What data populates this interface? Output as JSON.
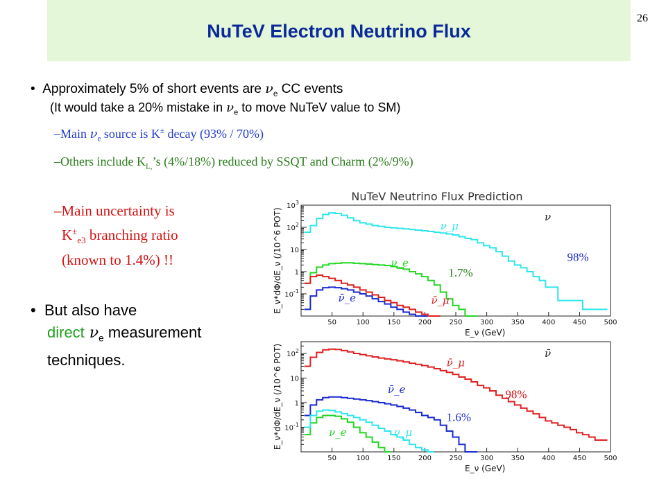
{
  "slide": {
    "title": "NuTeV Electron Neutrino Flux",
    "page_number": "26"
  },
  "text": {
    "b1_pre": "Approximately 5% of short events are ",
    "b1_nu": "ν",
    "b1_sub": "e",
    "b1_post": " CC events",
    "b1s_pre": "(It would take a 20% mistake in ",
    "b1s_nu": "ν",
    "b1s_sub": "e",
    "b1s_post": " to move NuTeV value to SM)",
    "s1_dash": "–",
    "s1_pre": "Main ",
    "s1_nu": "ν",
    "s1_sub": "e",
    "s1_mid": " source is K",
    "s1_sup": "±",
    "s1_post": "  decay (93% / 70%)",
    "s2_dash": "–",
    "s2_pre": "Others include K",
    "s2_sub": "L,",
    "s2_post": "’s (4%/18%) reduced by SSQT and Charm (2%/9%)",
    "s3_dash": "–",
    "s3_line1": "Main uncertainty is",
    "s3_K": "K",
    "s3_sup": "±",
    "s3_sub": "e3",
    "s3_line2_post": " branching ratio",
    "s3_line3": "(known to 1.4%) !!",
    "b2_line1": "But also have",
    "b2_direct": "direct",
    "b2_nu": " ν",
    "b2_sub": "e",
    "b2_post": " measurement",
    "b2_line3": "techniques."
  },
  "colors": {
    "title": "#0b2a9a",
    "title_band": "#e4f7d8",
    "sub1": "#1f3bd0",
    "sub2": "#2a7d1a",
    "sub3": "#d21212",
    "direct": "#1fa01f",
    "cyan": "#2de6ec",
    "green": "#22d622",
    "red": "#e02020",
    "blue": "#1a2ad0"
  },
  "chart_data": [
    {
      "type": "line",
      "title": "NuTeV Neutrino Flux Prediction",
      "xlabel": "E_ν (GeV)",
      "ylabel": "E_ν*dΦ/dE_ν (/10^6 POT)",
      "yscale": "log",
      "xlim": [
        0,
        500
      ],
      "ylim": [
        0.01,
        1000
      ],
      "xticks": [
        "50",
        "100",
        "150",
        "200",
        "250",
        "300",
        "350",
        "400",
        "450",
        "500"
      ],
      "yticks": [
        "10^-1",
        "1",
        "10",
        "10^2",
        "10^3"
      ],
      "corner_label": "ν",
      "annotations": [
        {
          "text": "98%",
          "x": 430,
          "y": 3,
          "color": "#1a2ad0"
        },
        {
          "text": "1.7%",
          "x": 238,
          "y": 0.6,
          "color": "#2a7d1a"
        }
      ],
      "series": [
        {
          "name": "ν_μ",
          "color": "#2de6ec",
          "label_at": [
            225,
            80
          ],
          "x": [
            10,
            20,
            30,
            40,
            50,
            60,
            70,
            80,
            90,
            100,
            110,
            120,
            130,
            140,
            150,
            160,
            170,
            180,
            190,
            200,
            210,
            220,
            230,
            240,
            250,
            260,
            270,
            280,
            290,
            300,
            310,
            320,
            330,
            340,
            350,
            360,
            370,
            380,
            390,
            400,
            410,
            420,
            430,
            440,
            450,
            460,
            470,
            480,
            490
          ],
          "y": [
            60,
            120,
            250,
            380,
            450,
            420,
            350,
            270,
            200,
            160,
            140,
            120,
            110,
            100,
            95,
            90,
            85,
            80,
            75,
            70,
            65,
            60,
            55,
            50,
            45,
            38,
            32,
            28,
            20,
            15,
            12,
            8,
            5,
            3,
            2,
            1.5,
            1,
            0.6,
            0.4,
            0.2,
            0.2,
            0.05,
            0.05,
            0.05,
            0.05,
            0.02,
            0.02,
            0.02,
            0.02
          ]
        },
        {
          "name": "ν_e",
          "color": "#22d622",
          "label_at": [
            145,
            1.7
          ],
          "x": [
            10,
            20,
            30,
            40,
            50,
            60,
            70,
            80,
            90,
            100,
            110,
            120,
            130,
            140,
            150,
            160,
            170,
            180,
            190,
            200,
            210,
            220,
            230,
            240,
            250,
            260,
            270,
            280
          ],
          "y": [
            0.3,
            0.9,
            1.6,
            2.0,
            2.3,
            2.4,
            2.5,
            2.5,
            2.4,
            2.3,
            2.2,
            2.1,
            2.0,
            1.9,
            1.7,
            1.5,
            1.3,
            1.0,
            0.8,
            0.6,
            0.4,
            0.25,
            0.12,
            0.06,
            0.03,
            0.02,
            0.01,
            0.01
          ]
        },
        {
          "name": "ν̄_e",
          "color": "#1a2ad0",
          "label_at": [
            60,
            0.045
          ],
          "x": [
            10,
            20,
            30,
            40,
            50,
            60,
            70,
            80,
            90,
            100,
            110,
            120,
            130,
            140,
            150,
            160,
            170,
            180,
            190,
            200
          ],
          "y": [
            0.02,
            0.08,
            0.15,
            0.19,
            0.2,
            0.19,
            0.17,
            0.15,
            0.12,
            0.1,
            0.08,
            0.06,
            0.045,
            0.035,
            0.025,
            0.02,
            0.015,
            0.012,
            0.01,
            0.01
          ]
        },
        {
          "name": "ν̄_μ",
          "color": "#e02020",
          "label_at": [
            210,
            0.035
          ],
          "x": [
            10,
            20,
            30,
            40,
            50,
            60,
            70,
            80,
            90,
            100,
            110,
            120,
            130,
            140,
            150,
            160,
            170,
            180,
            190,
            200,
            210,
            220
          ],
          "y": [
            0.3,
            0.6,
            0.7,
            0.6,
            0.5,
            0.4,
            0.3,
            0.25,
            0.2,
            0.15,
            0.12,
            0.09,
            0.07,
            0.05,
            0.04,
            0.03,
            0.025,
            0.02,
            0.015,
            0.012,
            0.01,
            0.01
          ]
        }
      ]
    },
    {
      "type": "line",
      "title": "",
      "xlabel": "E_ν (GeV)",
      "ylabel": "E_ν*dΦ/dE_ν (/10^6 POT)",
      "yscale": "log",
      "xlim": [
        0,
        500
      ],
      "ylim": [
        0.01,
        300
      ],
      "xticks": [
        "50",
        "100",
        "150",
        "200",
        "250",
        "300",
        "350",
        "400",
        "450",
        "500"
      ],
      "yticks": [
        "10^-1",
        "1",
        "10",
        "10^2"
      ],
      "corner_label": "ν̄",
      "annotations": [
        {
          "text": "98%",
          "x": 330,
          "y": 1.5,
          "color": "#d21212"
        },
        {
          "text": "1.6%",
          "x": 235,
          "y": 0.18,
          "color": "#1a2ad0"
        }
      ],
      "series": [
        {
          "name": "ν̄_μ",
          "color": "#e02020",
          "label_at": [
            235,
            30
          ],
          "x": [
            10,
            20,
            30,
            40,
            50,
            60,
            70,
            80,
            90,
            100,
            110,
            120,
            130,
            140,
            150,
            160,
            170,
            180,
            190,
            200,
            210,
            220,
            230,
            240,
            250,
            260,
            270,
            280,
            290,
            300,
            310,
            320,
            330,
            340,
            350,
            360,
            370,
            380,
            390,
            400,
            410,
            420,
            430,
            440,
            450,
            460,
            470,
            480,
            490
          ],
          "y": [
            30,
            70,
            110,
            140,
            150,
            145,
            130,
            115,
            100,
            90,
            80,
            72,
            65,
            60,
            55,
            50,
            45,
            40,
            36,
            32,
            28,
            24,
            20,
            17,
            14,
            11,
            9,
            7,
            5,
            4,
            3,
            2,
            1.5,
            1.1,
            0.8,
            0.6,
            0.45,
            0.35,
            0.25,
            0.18,
            0.15,
            0.12,
            0.1,
            0.08,
            0.06,
            0.05,
            0.04,
            0.03,
            0.03
          ]
        },
        {
          "name": "ν̄_e",
          "color": "#1a2ad0",
          "label_at": [
            140,
            2.5
          ],
          "x": [
            10,
            20,
            30,
            40,
            50,
            60,
            70,
            80,
            90,
            100,
            110,
            120,
            130,
            140,
            150,
            160,
            170,
            180,
            190,
            200,
            210,
            220,
            230,
            240,
            250,
            260,
            270,
            280
          ],
          "y": [
            0.3,
            0.8,
            1.3,
            1.6,
            1.7,
            1.7,
            1.6,
            1.5,
            1.4,
            1.3,
            1.2,
            1.1,
            1.0,
            0.9,
            0.8,
            0.7,
            0.6,
            0.5,
            0.4,
            0.3,
            0.25,
            0.2,
            0.12,
            0.07,
            0.04,
            0.02,
            0.01,
            0.01
          ]
        },
        {
          "name": "ν_e",
          "color": "#22d622",
          "label_at": [
            45,
            0.045
          ],
          "x": [
            10,
            20,
            30,
            40,
            50,
            60,
            70,
            80,
            90,
            100,
            110,
            120,
            130,
            140
          ],
          "y": [
            0.05,
            0.15,
            0.25,
            0.3,
            0.3,
            0.28,
            0.22,
            0.16,
            0.1,
            0.06,
            0.04,
            0.025,
            0.015,
            0.01
          ]
        },
        {
          "name": "ν_μ",
          "color": "#2de6ec",
          "label_at": [
            150,
            0.045
          ],
          "x": [
            10,
            20,
            30,
            40,
            50,
            60,
            70,
            80,
            90,
            100,
            110,
            120,
            130,
            140,
            150,
            160,
            170,
            180,
            190,
            200,
            210
          ],
          "y": [
            0.1,
            0.3,
            0.45,
            0.5,
            0.48,
            0.42,
            0.36,
            0.3,
            0.25,
            0.2,
            0.16,
            0.12,
            0.09,
            0.07,
            0.05,
            0.04,
            0.03,
            0.02,
            0.015,
            0.012,
            0.01
          ]
        }
      ]
    }
  ]
}
